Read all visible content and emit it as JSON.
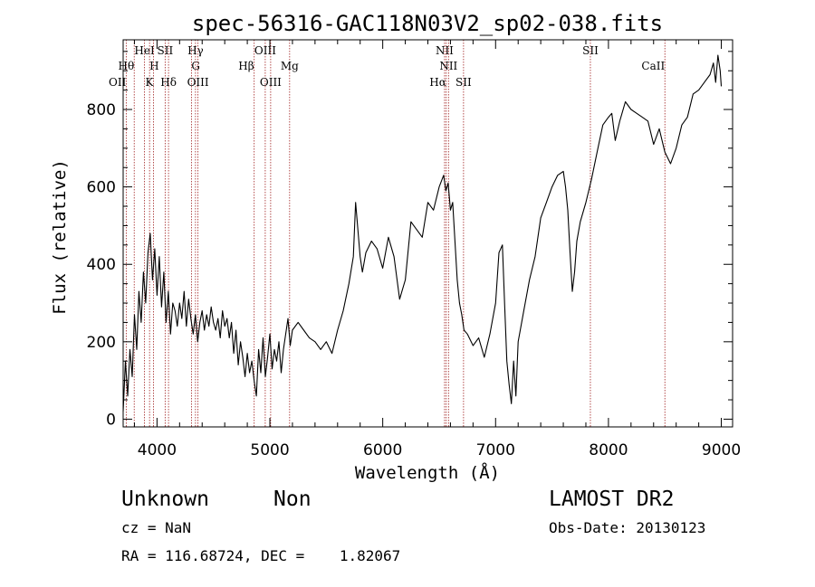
{
  "chart_data": {
    "type": "line",
    "title": "spec-56316-GAC118N03V2_sp02-038.fits",
    "xlabel": "Wavelength (Å)",
    "ylabel": "Flux (relative)",
    "xlim": [
      3700,
      9100
    ],
    "ylim": [
      -20,
      980
    ],
    "x_ticks": [
      4000,
      5000,
      6000,
      7000,
      8000,
      9000
    ],
    "y_ticks": [
      0,
      200,
      400,
      600,
      800
    ],
    "grid": false,
    "series": [
      {
        "color": "#000000",
        "x": [
          3700,
          3720,
          3740,
          3760,
          3780,
          3800,
          3820,
          3840,
          3860,
          3880,
          3900,
          3920,
          3940,
          3960,
          3980,
          4000,
          4020,
          4040,
          4060,
          4080,
          4100,
          4120,
          4140,
          4160,
          4180,
          4200,
          4220,
          4240,
          4260,
          4280,
          4300,
          4320,
          4340,
          4360,
          4380,
          4400,
          4420,
          4440,
          4460,
          4480,
          4500,
          4520,
          4540,
          4560,
          4580,
          4600,
          4620,
          4640,
          4660,
          4680,
          4700,
          4720,
          4740,
          4760,
          4780,
          4800,
          4820,
          4840,
          4860,
          4880,
          4900,
          4920,
          4940,
          4960,
          4980,
          5000,
          5020,
          5040,
          5060,
          5080,
          5100,
          5120,
          5140,
          5160,
          5180,
          5200,
          5250,
          5300,
          5350,
          5400,
          5450,
          5500,
          5550,
          5600,
          5650,
          5700,
          5740,
          5760,
          5780,
          5800,
          5820,
          5850,
          5900,
          5950,
          6000,
          6050,
          6100,
          6150,
          6200,
          6250,
          6300,
          6350,
          6400,
          6450,
          6500,
          6540,
          6560,
          6580,
          6600,
          6620,
          6640,
          6660,
          6680,
          6700,
          6720,
          6750,
          6800,
          6850,
          6900,
          6950,
          7000,
          7030,
          7060,
          7080,
          7100,
          7120,
          7140,
          7160,
          7180,
          7200,
          7250,
          7300,
          7350,
          7400,
          7450,
          7500,
          7550,
          7600,
          7620,
          7640,
          7660,
          7680,
          7700,
          7720,
          7750,
          7800,
          7850,
          7900,
          7950,
          8000,
          8030,
          8060,
          8100,
          8150,
          8200,
          8250,
          8300,
          8350,
          8400,
          8450,
          8500,
          8550,
          8600,
          8650,
          8700,
          8750,
          8800,
          8850,
          8900,
          8930,
          8950,
          8970,
          8990,
          9000
        ],
        "values": [
          20,
          150,
          60,
          180,
          110,
          270,
          180,
          330,
          250,
          380,
          300,
          430,
          480,
          360,
          440,
          320,
          420,
          290,
          380,
          250,
          330,
          220,
          300,
          280,
          240,
          300,
          260,
          330,
          240,
          310,
          260,
          220,
          270,
          200,
          250,
          280,
          230,
          270,
          240,
          290,
          250,
          230,
          260,
          210,
          280,
          240,
          260,
          210,
          250,
          170,
          230,
          140,
          200,
          160,
          110,
          170,
          120,
          150,
          100,
          60,
          180,
          120,
          210,
          110,
          160,
          220,
          130,
          180,
          150,
          200,
          120,
          180,
          220,
          260,
          190,
          230,
          250,
          230,
          210,
          200,
          180,
          200,
          170,
          230,
          280,
          350,
          420,
          560,
          490,
          420,
          380,
          430,
          460,
          440,
          390,
          470,
          420,
          310,
          360,
          510,
          490,
          470,
          560,
          540,
          600,
          630,
          590,
          610,
          540,
          560,
          460,
          360,
          300,
          270,
          230,
          220,
          190,
          210,
          160,
          220,
          300,
          430,
          450,
          300,
          150,
          90,
          40,
          150,
          60,
          200,
          280,
          360,
          420,
          520,
          560,
          600,
          630,
          640,
          600,
          540,
          430,
          330,
          380,
          460,
          510,
          560,
          620,
          690,
          760,
          780,
          790,
          720,
          770,
          820,
          800,
          790,
          780,
          770,
          710,
          750,
          690,
          660,
          700,
          760,
          780,
          840,
          850,
          870,
          890,
          920,
          870,
          940,
          900,
          860
        ]
      }
    ],
    "line_markers": [
      {
        "label": "OII",
        "x": 3727,
        "row": 2,
        "anchor": "end"
      },
      {
        "label": "Hθ",
        "x": 3798,
        "row": 1,
        "anchor": "end"
      },
      {
        "label": "HeI",
        "x": 3889,
        "row": 0,
        "anchor": "middle"
      },
      {
        "label": "H",
        "x": 3934,
        "row": 1,
        "anchor": "start"
      },
      {
        "label": "K",
        "x": 3969,
        "row": 2,
        "anchor": "end"
      },
      {
        "label": "SII",
        "x": 4072,
        "row": 0,
        "anchor": "middle"
      },
      {
        "label": "Hδ",
        "x": 4102,
        "row": 2,
        "anchor": "middle"
      },
      {
        "label": "G",
        "x": 4305,
        "row": 1,
        "anchor": "start"
      },
      {
        "label": "Hγ",
        "x": 4341,
        "row": 0,
        "anchor": "middle"
      },
      {
        "label": "OIII",
        "x": 4363,
        "row": 2,
        "anchor": "middle"
      },
      {
        "label": "Hβ",
        "x": 4861,
        "row": 1,
        "anchor": "end"
      },
      {
        "label": "OIII",
        "x": 4959,
        "row": 0,
        "anchor": "middle"
      },
      {
        "label": "OIII",
        "x": 5007,
        "row": 2,
        "anchor": "middle"
      },
      {
        "label": "Mg",
        "x": 5175,
        "row": 1,
        "anchor": "middle"
      },
      {
        "label": "NII",
        "x": 6548,
        "row": 0,
        "anchor": "middle"
      },
      {
        "label": "Hα",
        "x": 6563,
        "row": 2,
        "anchor": "end"
      },
      {
        "label": "NII",
        "x": 6583,
        "row": 1,
        "anchor": "middle"
      },
      {
        "label": "SII",
        "x": 6716,
        "row": 2,
        "anchor": "middle"
      },
      {
        "label": "SII",
        "x": 7840,
        "row": 0,
        "anchor": "middle"
      },
      {
        "label": "CaII",
        "x": 8500,
        "row": 1,
        "anchor": "end"
      }
    ]
  },
  "info": {
    "class_name": "Unknown",
    "subclass": "Non",
    "survey": "LAMOST DR2",
    "cz": "cz = NaN",
    "obs_date": "Obs-Date: 20130123",
    "coords": "RA = 116.68724, DEC =    1.82067"
  },
  "colors": {
    "spectrum": "#000000",
    "line_marker": "#a02020",
    "axis": "#000000",
    "background": "#ffffff"
  }
}
